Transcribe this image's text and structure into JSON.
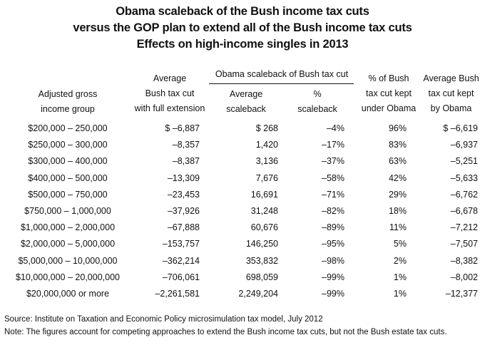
{
  "title": {
    "line1": "Obama scaleback of the Bush income tax cuts",
    "line2": "versus the GOP plan to extend all of the Bush income tax cuts",
    "line3": "Effects on high-income singles in 2013"
  },
  "headers": {
    "agi": [
      "Adjusted gross",
      "income group"
    ],
    "avg_cut": [
      "Average",
      "Bush tax cut",
      "with full extension"
    ],
    "obama_group": "Obama scaleback of Bush tax cut",
    "avg_scaleback": [
      "Average",
      "scaleback"
    ],
    "pct_scaleback": [
      "%",
      "scaleback"
    ],
    "pct_kept": [
      "% of Bush",
      "tax cut kept",
      "under Obama"
    ],
    "avg_kept": [
      "Average Bush",
      "tax cut kept",
      "by Obama"
    ]
  },
  "rows": [
    {
      "group": "$200,000 – 250,000",
      "avg_cut": "$ –6,887",
      "avg_scaleback": "$ 268",
      "pct_scaleback": "–4%",
      "pct_kept": "96%",
      "avg_kept": "$ –6,619"
    },
    {
      "group": "$250,000 – 300,000",
      "avg_cut": "–8,357",
      "avg_scaleback": "1,420",
      "pct_scaleback": "–17%",
      "pct_kept": "83%",
      "avg_kept": "–6,937"
    },
    {
      "group": "$300,000 – 400,000",
      "avg_cut": "–8,387",
      "avg_scaleback": "3,136",
      "pct_scaleback": "–37%",
      "pct_kept": "63%",
      "avg_kept": "–5,251"
    },
    {
      "group": "$400,000 – 500,000",
      "avg_cut": "–13,309",
      "avg_scaleback": "7,676",
      "pct_scaleback": "–58%",
      "pct_kept": "42%",
      "avg_kept": "–5,633"
    },
    {
      "group": "$500,000 – 750,000",
      "avg_cut": "–23,453",
      "avg_scaleback": "16,691",
      "pct_scaleback": "–71%",
      "pct_kept": "29%",
      "avg_kept": "–6,762"
    },
    {
      "group": "$750,000 – 1,000,000",
      "avg_cut": "–37,926",
      "avg_scaleback": "31,248",
      "pct_scaleback": "–82%",
      "pct_kept": "18%",
      "avg_kept": "–6,678"
    },
    {
      "group": "$1,000,000 – 2,000,000",
      "avg_cut": "–67,888",
      "avg_scaleback": "60,676",
      "pct_scaleback": "–89%",
      "pct_kept": "11%",
      "avg_kept": "–7,212"
    },
    {
      "group": "$2,000,000 – 5,000,000",
      "avg_cut": "–153,757",
      "avg_scaleback": "146,250",
      "pct_scaleback": "–95%",
      "pct_kept": "5%",
      "avg_kept": "–7,507"
    },
    {
      "group": "$5,000,000 – 10,000,000",
      "avg_cut": "–362,214",
      "avg_scaleback": "353,832",
      "pct_scaleback": "–98%",
      "pct_kept": "2%",
      "avg_kept": "–8,382"
    },
    {
      "group": "$10,000,000 – 20,000,000",
      "avg_cut": "–706,061",
      "avg_scaleback": "698,059",
      "pct_scaleback": "–99%",
      "pct_kept": "1%",
      "avg_kept": "–8,002"
    },
    {
      "group": "$20,000,000 or more",
      "avg_cut": "–2,261,581",
      "avg_scaleback": "2,249,204",
      "pct_scaleback": "–99%",
      "pct_kept": "1%",
      "avg_kept": "–12,377"
    }
  ],
  "notes": {
    "source": "Source: Institute on Taxation and Economic Policy microsimulation tax model, July 2012",
    "note": "Note: The figures account for competing approaches to extend the Bush income tax cuts, but not the Bush estate tax cuts."
  }
}
